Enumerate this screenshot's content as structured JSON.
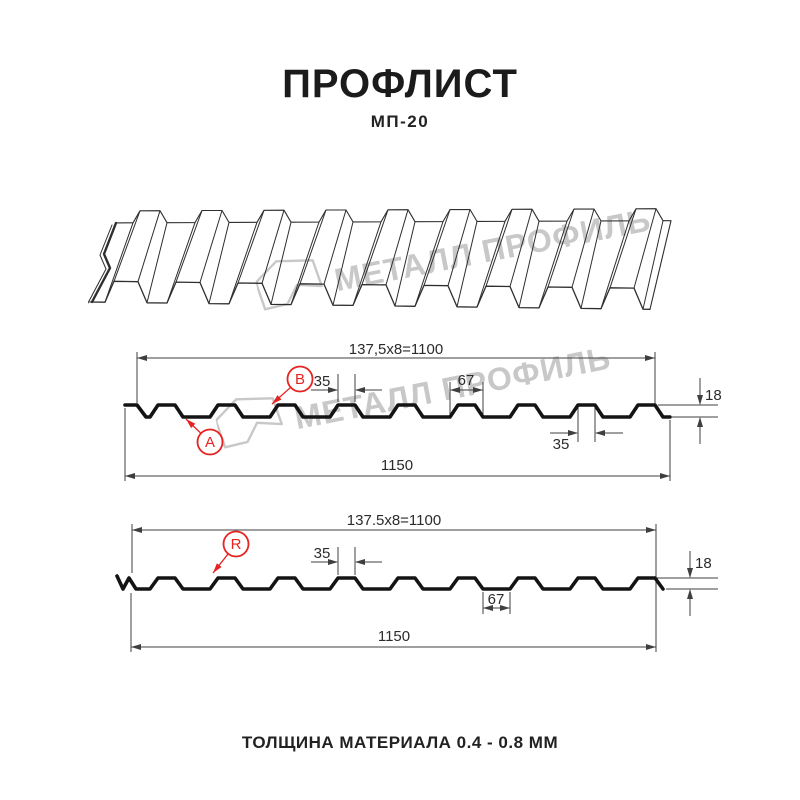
{
  "header": {
    "title": "ПРОФЛИСТ",
    "model": "МП-20"
  },
  "watermark": {
    "text": "МЕТАЛЛ ПРОФИЛЬ"
  },
  "footer": {
    "text": "ТОЛЩИНА МАТЕРИАЛА 0.4 - 0.8 ММ"
  },
  "colors": {
    "accent_red": "#e52321",
    "line": "#3f3f3f",
    "profile": "#141414",
    "watermark": "#c8c8c8",
    "sheet_outline": "#2e2e2e"
  },
  "diagram_top": {
    "width_formula": "137,5x8=1100",
    "overall_width": "1150",
    "crest_width": "35",
    "rib_base_width": "67",
    "profile_height": "18",
    "crest_width_lower": "35",
    "marker_a": "A",
    "marker_b": "B"
  },
  "diagram_bottom": {
    "width_formula": "137.5x8=1100",
    "overall_width": "1150",
    "crest_width": "35",
    "valley_width": "67",
    "profile_height": "18",
    "marker_r": "R"
  }
}
